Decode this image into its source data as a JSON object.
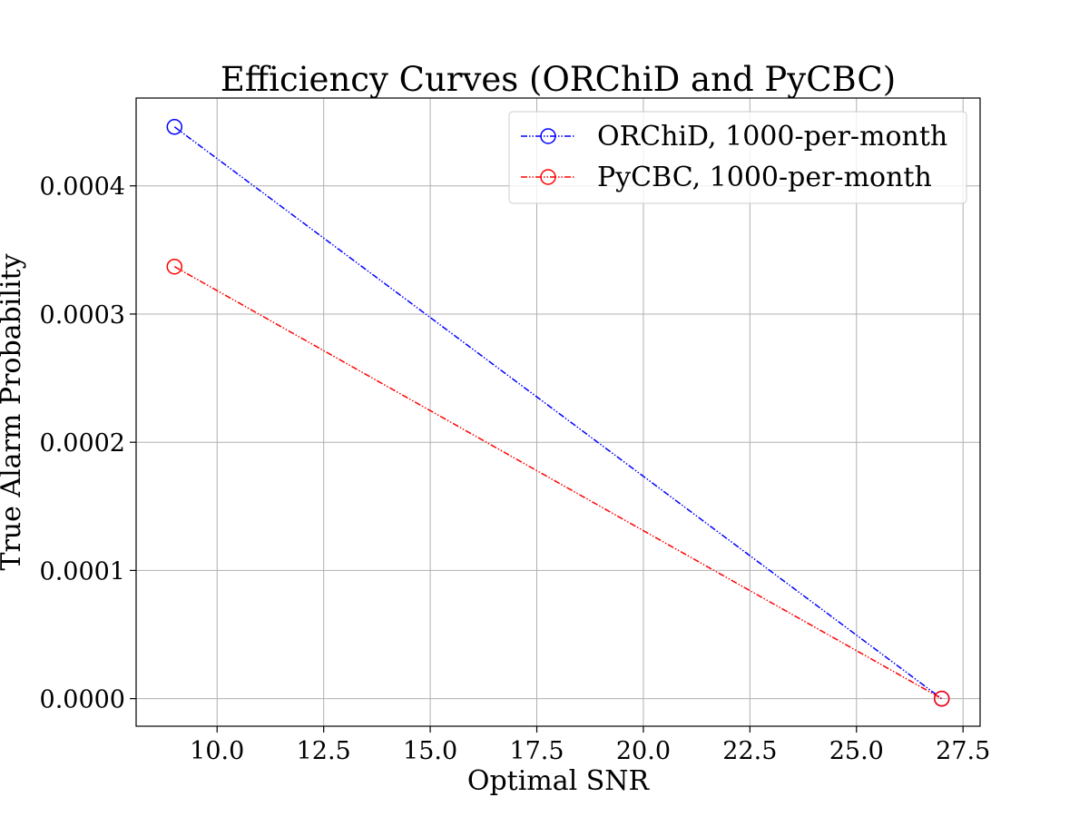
{
  "chart_data": {
    "type": "line",
    "title": "Efficiency Curves (ORChiD and PyCBC)",
    "xlabel": "Optimal SNR",
    "ylabel": "True Alarm Probability",
    "xlim": [
      8.1,
      27.9
    ],
    "ylim": [
      -2.15e-05,
      0.0004685
    ],
    "xticks": [
      10.0,
      12.5,
      15.0,
      17.5,
      20.0,
      22.5,
      25.0,
      27.5
    ],
    "xtick_labels": [
      "10.0",
      "12.5",
      "15.0",
      "17.5",
      "20.0",
      "22.5",
      "25.0",
      "27.5"
    ],
    "yticks": [
      0.0,
      0.0001,
      0.0002,
      0.0003,
      0.0004
    ],
    "ytick_labels": [
      "0.0000",
      "0.0001",
      "0.0002",
      "0.0003",
      "0.0004"
    ],
    "grid": true,
    "legend_position": "top-right",
    "series": [
      {
        "name": "ORChiD, 1000-per-month",
        "color": "#0000ff",
        "marker": "open-circle",
        "linestyle": "dash-dot-dot",
        "x": [
          9.0,
          27.0
        ],
        "y": [
          0.000446,
          0.0
        ]
      },
      {
        "name": "PyCBC, 1000-per-month",
        "color": "#ff0000",
        "marker": "open-circle",
        "linestyle": "dash-dot-dot",
        "x": [
          9.0,
          27.0
        ],
        "y": [
          0.000337,
          0.0
        ]
      }
    ]
  }
}
